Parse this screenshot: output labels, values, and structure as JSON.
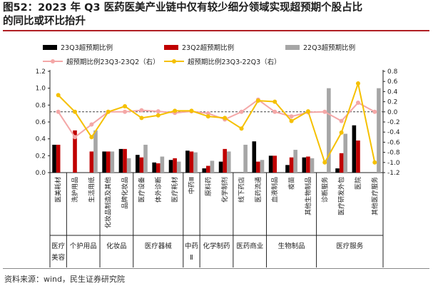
{
  "title_line1": "图52：2023 年 Q3 医药医美产业链中仅有较少细分领域实现超预期个股占比",
  "title_line2": "的同比或环比抬升",
  "source": "资料来源：wind，民生证券研究院",
  "colors": {
    "s23q3": "#000000",
    "s23q2": "#c00000",
    "s22q3": "#a6a6a6",
    "qoq": "#f4a7a7",
    "yoy": "#f5c000",
    "title_rule": "#b01f24"
  },
  "chart_data": {
    "type": "bar",
    "categories": [
      "医美耗材",
      "洗护用品",
      "生活用纸",
      "化妆品制造及其他",
      "品牌化妆品",
      "医疗设备",
      "体外诊断",
      "医疗耗材",
      "中药Ⅲ",
      "原料药",
      "化学制剂",
      "线下药店",
      "医药流通",
      "血液制品",
      "疫苗",
      "其他生物制品",
      "诊断服务",
      "医疗研发外包",
      "医院",
      "其他医疗服务"
    ],
    "groups": [
      {
        "label": "医疗美容",
        "start": 0,
        "end": 0
      },
      {
        "label": "个护用品",
        "start": 1,
        "end": 2
      },
      {
        "label": "化妆品",
        "start": 3,
        "end": 4
      },
      {
        "label": "医疗器械",
        "start": 5,
        "end": 7
      },
      {
        "label": "中药Ⅱ",
        "start": 8,
        "end": 8
      },
      {
        "label": "化学制药",
        "start": 9,
        "end": 10
      },
      {
        "label": "医药商业",
        "start": 11,
        "end": 12
      },
      {
        "label": "生物制品",
        "start": 13,
        "end": 15
      },
      {
        "label": "医疗服务",
        "start": 16,
        "end": 19
      }
    ],
    "bar_series": [
      {
        "name": "23Q3超预期比例",
        "values": [
          0.33,
          0.0,
          0.0,
          0.25,
          0.28,
          0.21,
          0.12,
          0.15,
          0.26,
          0.05,
          0.13,
          0.0,
          0.37,
          0.2,
          0.09,
          0.18,
          0.0,
          0.05,
          0.56,
          0.0
        ]
      },
      {
        "name": "23Q2超预期比例",
        "values": [
          0.33,
          0.5,
          0.25,
          0.25,
          0.28,
          0.18,
          0.11,
          0.17,
          0.25,
          0.08,
          0.28,
          0.0,
          0.13,
          0.2,
          0.18,
          0.19,
          0.0,
          0.23,
          0.38,
          0.0
        ]
      },
      {
        "name": "22Q3超预期比例",
        "values": [
          0.0,
          0.0,
          0.5,
          0.25,
          0.17,
          0.33,
          0.19,
          0.13,
          0.24,
          0.14,
          0.25,
          0.33,
          0.15,
          0.0,
          0.27,
          0.17,
          1.0,
          0.46,
          0.0,
          1.0
        ]
      }
    ],
    "line_series": [
      {
        "name": "超预期比例23Q3-23Q2（右）",
        "values": [
          0.0,
          -0.5,
          -0.25,
          0.0,
          0.0,
          0.03,
          0.01,
          -0.02,
          0.01,
          -0.03,
          -0.15,
          0.0,
          0.24,
          0.0,
          -0.09,
          -0.01,
          0.0,
          -0.18,
          0.18,
          0.0
        ]
      },
      {
        "name": "超预期比例23Q3-22Q3（右）",
        "values": [
          0.33,
          0.0,
          -0.5,
          0.0,
          0.11,
          -0.12,
          -0.07,
          0.02,
          0.02,
          -0.09,
          -0.12,
          -0.33,
          0.22,
          0.2,
          -0.18,
          0.01,
          -1.0,
          -0.41,
          0.56,
          -1.0
        ]
      }
    ],
    "ylim_left": [
      0,
      1.2
    ],
    "ylim_right": [
      -1.2,
      0.8
    ],
    "yticks_left": [
      "0.0",
      "0.2",
      "0.4",
      "0.6",
      "0.8",
      "1.0",
      "1.2"
    ],
    "yticks_right": [
      "-1.2",
      "-1.0",
      "-0.8",
      "-0.6",
      "-0.4",
      "-0.2",
      "0.0",
      "0.2",
      "0.4",
      "0.6",
      "0.8"
    ],
    "reference_line_right": 0.0,
    "legend_placement": "top"
  }
}
